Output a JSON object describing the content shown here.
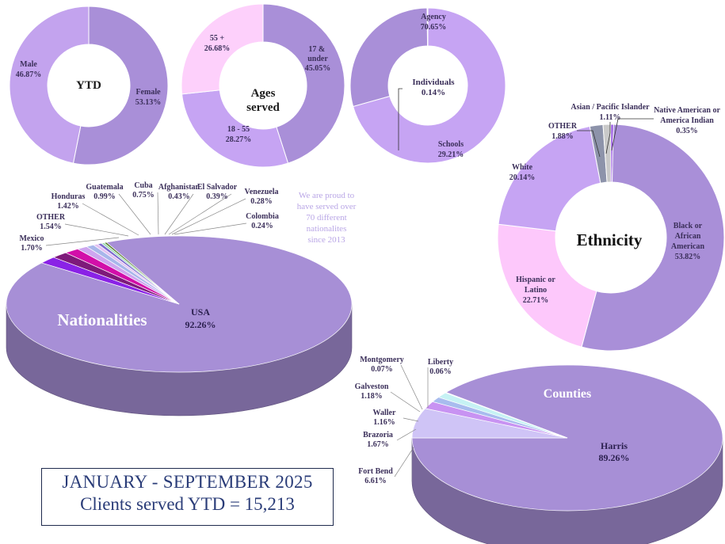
{
  "charts": {
    "gender": {
      "center": "YTD",
      "slices": [
        {
          "name": "Female",
          "value": 53.13,
          "label": "53.13%",
          "color": "#a98fd8"
        },
        {
          "name": "Male",
          "value": 46.87,
          "label": "46.87%",
          "color": "#c3a3ee"
        }
      ]
    },
    "ages": {
      "center_line1": "Ages",
      "center_line2": "served",
      "slices": [
        {
          "name": "17 & under",
          "value": 45.05,
          "label": "45.05%",
          "color": "#a98fd8"
        },
        {
          "name": "18 - 55",
          "value": 28.27,
          "label": "28.27%",
          "color": "#c6a4f3"
        },
        {
          "name": "55 +",
          "value": 26.68,
          "label": "26.68%",
          "color": "#fdd0fb"
        }
      ]
    },
    "clients": {
      "slices": [
        {
          "name": "Agency",
          "value": 70.65,
          "label": "70.65%",
          "color": "#c6a4f3"
        },
        {
          "name": "Schools",
          "value": 29.21,
          "label": "29.21%",
          "color": "#a98fd8"
        },
        {
          "name": "Individuals",
          "value": 0.14,
          "label": "0.14%",
          "color": "#7a5fb0"
        }
      ]
    },
    "ethnicity": {
      "center": "Ethnicity",
      "slices": [
        {
          "name": "Native American or America Indian",
          "value": 0.35,
          "label": "0.35%",
          "color": "#8b3fe0"
        },
        {
          "name": "Black or African American",
          "value": 53.82,
          "label": "53.82%",
          "color": "#a98fd8"
        },
        {
          "name": "Hispanic or Latino",
          "value": 22.71,
          "label": "22.71%",
          "color": "#fdc8fb"
        },
        {
          "name": "White",
          "value": 20.14,
          "label": "20.14%",
          "color": "#c6a4f3"
        },
        {
          "name": "OTHER",
          "value": 1.88,
          "label": "1.88%",
          "color": "#8d93aa"
        },
        {
          "name": "Asian / Pacific Islander",
          "value": 1.11,
          "label": "1.11%",
          "color": "#c9c9c9"
        }
      ]
    },
    "nationalities": {
      "title": "Nationalities",
      "note": "We are proud to have served over 70 different nationalites since 2013",
      "slices": [
        {
          "name": "USA",
          "value": 92.26,
          "label": "92.26%",
          "color": "#a78fd6"
        },
        {
          "name": "Mexico",
          "value": 1.7,
          "label": "1.70%",
          "color": "#8a22e6"
        },
        {
          "name": "OTHER",
          "value": 1.54,
          "label": "1.54%",
          "color": "#7e1a7a"
        },
        {
          "name": "Honduras",
          "value": 1.42,
          "label": "1.42%",
          "color": "#d20fa9"
        },
        {
          "name": "Guatemala",
          "value": 0.99,
          "label": "0.99%",
          "color": "#cda6ef"
        },
        {
          "name": "Cuba",
          "value": 0.75,
          "label": "0.75%",
          "color": "#a8b6ea"
        },
        {
          "name": "Afghanistan",
          "value": 0.43,
          "label": "0.43%",
          "color": "#e3c0f2"
        },
        {
          "name": "El Salvador",
          "value": 0.39,
          "label": "0.39%",
          "color": "#7e6cd0"
        },
        {
          "name": "Venezuela",
          "value": 0.28,
          "label": "0.28%",
          "color": "#9cdcb4"
        },
        {
          "name": "Colombia",
          "value": 0.24,
          "label": "0.24%",
          "color": "#567c2b"
        }
      ]
    },
    "counties": {
      "title": "Counties",
      "slices": [
        {
          "name": "Harris",
          "value": 89.26,
          "label": "89.26%",
          "color": "#a78fd6"
        },
        {
          "name": "Fort Bend",
          "value": 6.61,
          "label": "6.61%",
          "color": "#cfc4f6"
        },
        {
          "name": "Brazoria",
          "value": 1.67,
          "label": "1.67%",
          "color": "#c893f2"
        },
        {
          "name": "Waller",
          "value": 1.16,
          "label": "1.16%",
          "color": "#a8bcee"
        },
        {
          "name": "Galveston",
          "value": 1.18,
          "label": "1.18%",
          "color": "#c6f2f4"
        },
        {
          "name": "Montgomery",
          "value": 0.07,
          "label": "0.07%",
          "color": "#556b2f"
        },
        {
          "name": "Liberty",
          "value": 0.06,
          "label": "0.06%",
          "color": "#7a1f1f"
        }
      ]
    }
  },
  "footer": {
    "line1": "JANUARY - SEPTEMBER 2025",
    "line2": "Clients served YTD = 15,213"
  }
}
